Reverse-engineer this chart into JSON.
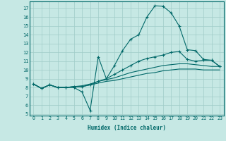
{
  "xlabel": "Humidex (Indice chaleur)",
  "xlim": [
    -0.5,
    23.5
  ],
  "ylim": [
    4.8,
    17.8
  ],
  "yticks": [
    5,
    6,
    7,
    8,
    9,
    10,
    11,
    12,
    13,
    14,
    15,
    16,
    17
  ],
  "xticks": [
    0,
    1,
    2,
    3,
    4,
    5,
    6,
    7,
    8,
    9,
    10,
    11,
    12,
    13,
    14,
    15,
    16,
    17,
    18,
    19,
    20,
    21,
    22,
    23
  ],
  "background_color": "#c6e8e4",
  "grid_color": "#a0ccc8",
  "line_color": "#006868",
  "lines": [
    {
      "x": [
        0,
        1,
        2,
        3,
        4,
        5,
        6,
        7,
        8,
        9,
        10,
        11,
        12,
        13,
        14,
        15,
        16,
        17,
        18,
        19,
        20,
        21,
        22,
        23
      ],
      "y": [
        8.4,
        7.9,
        8.3,
        8.0,
        8.0,
        8.0,
        7.5,
        5.4,
        11.5,
        9.0,
        10.5,
        12.2,
        13.5,
        14.0,
        16.0,
        17.3,
        17.25,
        16.5,
        15.0,
        12.3,
        12.2,
        11.2,
        11.1,
        10.4
      ],
      "marker": true
    },
    {
      "x": [
        0,
        1,
        2,
        3,
        4,
        5,
        6,
        7,
        8,
        9,
        10,
        11,
        12,
        13,
        14,
        15,
        16,
        17,
        18,
        19,
        20,
        21,
        22,
        23
      ],
      "y": [
        8.4,
        7.9,
        8.3,
        8.0,
        8.0,
        8.1,
        8.1,
        8.3,
        8.7,
        9.0,
        9.5,
        10.0,
        10.5,
        11.0,
        11.3,
        11.5,
        11.7,
        12.0,
        12.1,
        11.2,
        11.0,
        11.1,
        11.1,
        10.4
      ],
      "marker": true
    },
    {
      "x": [
        0,
        1,
        2,
        3,
        4,
        5,
        6,
        7,
        8,
        9,
        10,
        11,
        12,
        13,
        14,
        15,
        16,
        17,
        18,
        19,
        20,
        21,
        22,
        23
      ],
      "y": [
        8.4,
        7.9,
        8.3,
        8.0,
        8.0,
        8.1,
        8.2,
        8.4,
        8.7,
        8.9,
        9.1,
        9.4,
        9.7,
        9.9,
        10.1,
        10.3,
        10.5,
        10.6,
        10.7,
        10.7,
        10.6,
        10.5,
        10.4,
        10.4
      ],
      "marker": false
    },
    {
      "x": [
        0,
        1,
        2,
        3,
        4,
        5,
        6,
        7,
        8,
        9,
        10,
        11,
        12,
        13,
        14,
        15,
        16,
        17,
        18,
        19,
        20,
        21,
        22,
        23
      ],
      "y": [
        8.4,
        7.9,
        8.3,
        8.0,
        8.0,
        8.1,
        8.1,
        8.3,
        8.5,
        8.7,
        8.8,
        9.0,
        9.2,
        9.4,
        9.6,
        9.7,
        9.9,
        10.0,
        10.1,
        10.1,
        10.1,
        10.0,
        10.0,
        10.0
      ],
      "marker": false
    }
  ]
}
